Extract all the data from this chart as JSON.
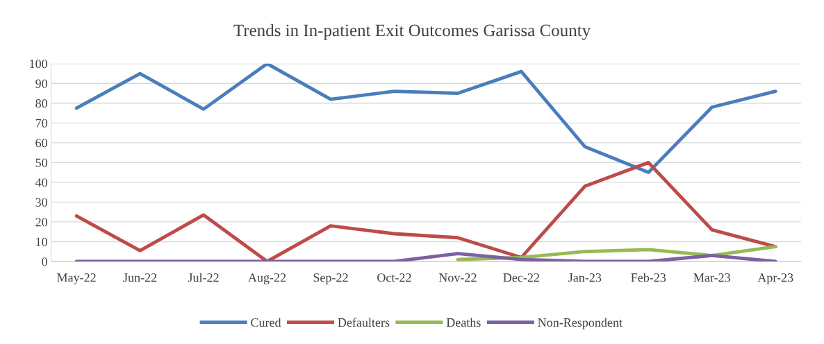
{
  "chart_data": {
    "type": "line",
    "title": "Trends in In-patient Exit Outcomes Garissa County",
    "categories": [
      "May-22",
      "Jun-22",
      "Jul-22",
      "Aug-22",
      "Sep-22",
      "Oct-22",
      "Nov-22",
      "Dec-22",
      "Jan-23",
      "Feb-23",
      "Mar-23",
      "Apr-23"
    ],
    "series": [
      {
        "name": "Cured",
        "color": "#4a7ebb",
        "values": [
          77.5,
          95,
          77,
          100,
          82,
          86,
          85,
          96,
          58,
          45,
          78,
          86
        ]
      },
      {
        "name": "Defaulters",
        "color": "#be4b48",
        "values": [
          23,
          5.5,
          23.5,
          0,
          18,
          14,
          12,
          2,
          38,
          50,
          16,
          7.5
        ]
      },
      {
        "name": "Deaths",
        "color": "#98b954",
        "values": [
          null,
          null,
          null,
          null,
          null,
          null,
          1,
          2,
          5,
          6,
          3,
          7.5
        ]
      },
      {
        "name": "Non-Respondent",
        "color": "#7d60a0",
        "values": [
          0,
          0,
          0,
          0,
          0,
          0,
          4,
          1,
          0,
          0,
          3,
          0
        ]
      }
    ],
    "ylim": [
      0,
      100
    ],
    "yticks": [
      0,
      10,
      20,
      30,
      40,
      50,
      60,
      70,
      80,
      90,
      100
    ],
    "grid": "y",
    "legend": "bottom",
    "marker": "none",
    "line_style": "solid"
  }
}
